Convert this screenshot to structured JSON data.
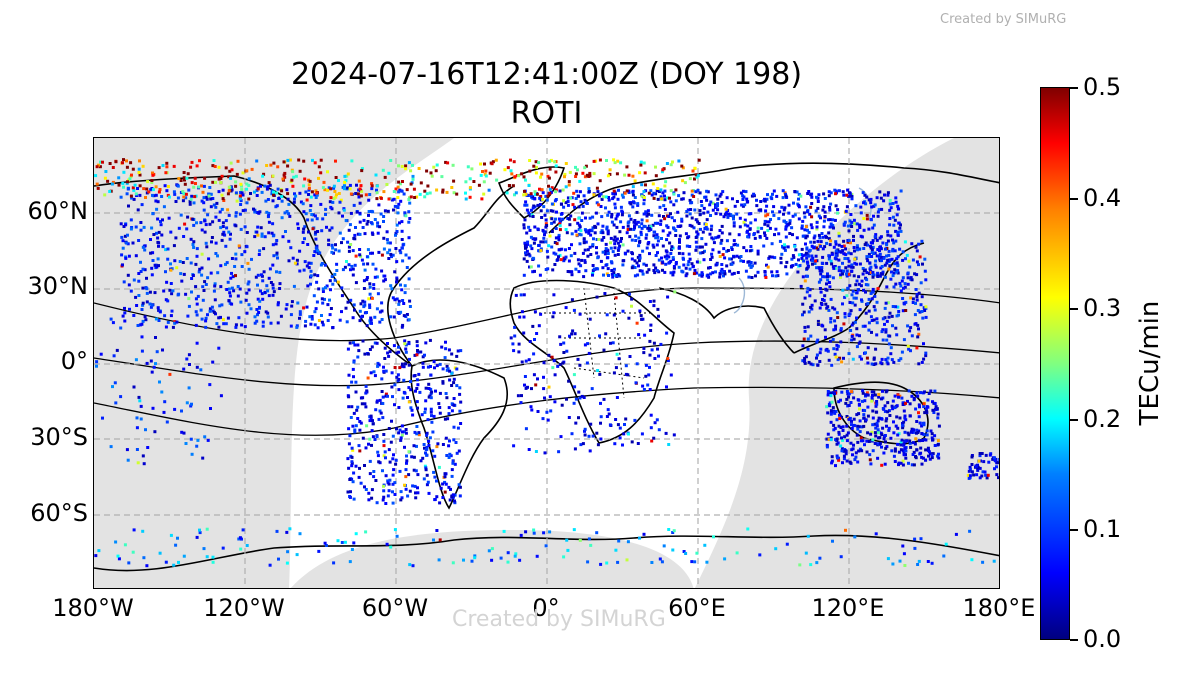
{
  "credit_top": "Created by SIMuRG",
  "credit_watermark": "Created by SIMuRG",
  "title_line1": "2024-07-16T12:41:00Z (DOY 198)",
  "title_line2": "ROTI",
  "lat_labels": [
    "60°N",
    "30°N",
    "0°",
    "30°S",
    "60°S"
  ],
  "lon_labels": [
    "180°W",
    "120°W",
    "60°W",
    "0°",
    "60°E",
    "120°E",
    "180°E"
  ],
  "colorbar": {
    "label": "TECu/min",
    "ticks": [
      "0.0",
      "0.1",
      "0.2",
      "0.3",
      "0.4",
      "0.5"
    ],
    "range": [
      0.0,
      0.5
    ],
    "colormap": "jet"
  },
  "colors": {
    "night_shade": "#e3e3e3",
    "grid": "#b0b0b0",
    "coast": "#000000",
    "lakes": "#9db8d6"
  },
  "map": {
    "projection": "PlateCarree",
    "lon_range": [
      -180,
      180
    ],
    "lat_range": [
      -90,
      90
    ],
    "gridlines": "dashed"
  },
  "data_regions": [
    {
      "name": "north-america",
      "lon": [
        -170,
        -55
      ],
      "lat": [
        15,
        72
      ],
      "density": 900,
      "level": 0.08
    },
    {
      "name": "south-america",
      "lon": [
        -80,
        -35
      ],
      "lat": [
        -55,
        10
      ],
      "density": 450,
      "level": 0.07
    },
    {
      "name": "europe-russia",
      "lon": [
        -10,
        140
      ],
      "lat": [
        35,
        70
      ],
      "density": 1300,
      "level": 0.07
    },
    {
      "name": "africa",
      "lon": [
        -15,
        50
      ],
      "lat": [
        -35,
        30
      ],
      "density": 220,
      "level": 0.06
    },
    {
      "name": "asia-east",
      "lon": [
        100,
        150
      ],
      "lat": [
        0,
        50
      ],
      "density": 450,
      "level": 0.07
    },
    {
      "name": "australia",
      "lon": [
        110,
        155
      ],
      "lat": [
        -40,
        -10
      ],
      "density": 420,
      "level": 0.06
    },
    {
      "name": "pacific",
      "lon": [
        -180,
        -130
      ],
      "lat": [
        -40,
        20
      ],
      "density": 80,
      "level": 0.09
    },
    {
      "name": "new-zealand",
      "lon": [
        165,
        180
      ],
      "lat": [
        -45,
        -35
      ],
      "density": 60,
      "level": 0.06
    },
    {
      "name": "antarctica",
      "lon": [
        -180,
        180
      ],
      "lat": [
        -80,
        -65
      ],
      "density": 160,
      "level": 0.15
    },
    {
      "name": "arctic-auroral",
      "lon": [
        -180,
        60
      ],
      "lat": [
        66,
        82
      ],
      "density": 480,
      "level": 0.4
    }
  ]
}
